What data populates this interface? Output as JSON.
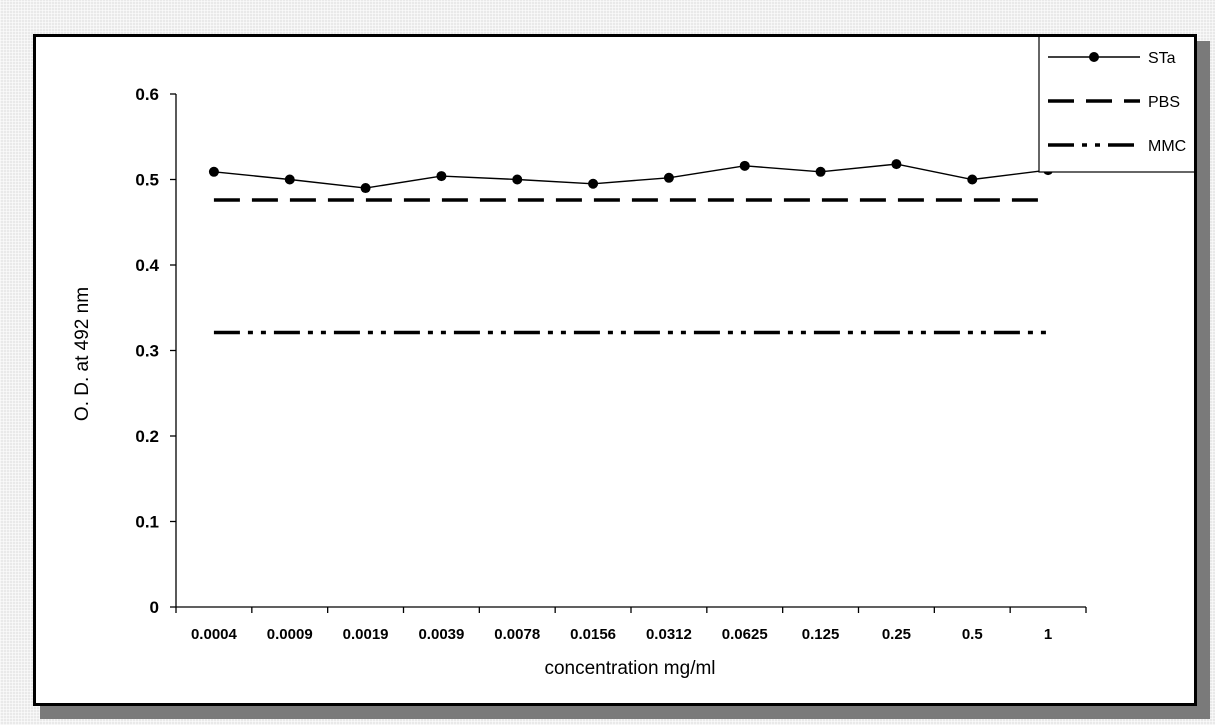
{
  "chart_data": {
    "type": "line",
    "title": "",
    "xlabel": "concentration mg/ml",
    "ylabel": "O. D. at 492 nm",
    "categories": [
      "0.0004",
      "0.0009",
      "0.0019",
      "0.0039",
      "0.0078",
      "0.0156",
      "0.0312",
      "0.0625",
      "0.125",
      "0.25",
      "0.5",
      "1"
    ],
    "ylim": [
      0,
      0.6
    ],
    "yticks": [
      "0",
      "0.1",
      "0.2",
      "0.3",
      "0.4",
      "0.5",
      "0.6"
    ],
    "grid": false,
    "legend_position": "top-right",
    "series": [
      {
        "name": "STa",
        "values": [
          0.509,
          0.5,
          0.49,
          0.504,
          0.5,
          0.495,
          0.502,
          0.516,
          0.509,
          0.518,
          0.5,
          0.511
        ],
        "style": "solid-markers",
        "color": "#000000"
      },
      {
        "name": "PBS",
        "values": [
          0.476,
          0.476,
          0.476,
          0.476,
          0.476,
          0.476,
          0.476,
          0.476,
          0.476,
          0.476,
          0.476,
          0.476
        ],
        "style": "dashed",
        "color": "#000000"
      },
      {
        "name": "MMC",
        "values": [
          0.321,
          0.321,
          0.321,
          0.321,
          0.321,
          0.321,
          0.321,
          0.321,
          0.321,
          0.321,
          0.321,
          0.321
        ],
        "style": "dash-dot-dot",
        "color": "#000000"
      }
    ]
  }
}
